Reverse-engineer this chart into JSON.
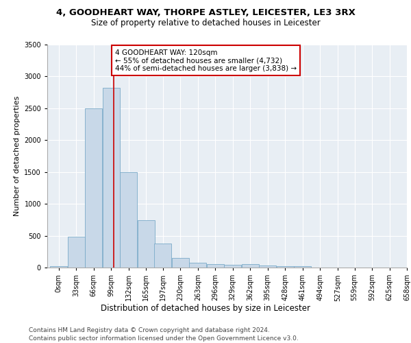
{
  "title1": "4, GOODHEART WAY, THORPE ASTLEY, LEICESTER, LE3 3RX",
  "title2": "Size of property relative to detached houses in Leicester",
  "xlabel": "Distribution of detached houses by size in Leicester",
  "ylabel": "Number of detached properties",
  "bin_labels": [
    "0sqm",
    "33sqm",
    "66sqm",
    "99sqm",
    "132sqm",
    "165sqm",
    "197sqm",
    "230sqm",
    "263sqm",
    "296sqm",
    "329sqm",
    "362sqm",
    "395sqm",
    "428sqm",
    "461sqm",
    "494sqm",
    "527sqm",
    "559sqm",
    "592sqm",
    "625sqm",
    "658sqm"
  ],
  "bin_edges": [
    0,
    33,
    66,
    99,
    132,
    165,
    197,
    230,
    263,
    296,
    329,
    362,
    395,
    428,
    461,
    494,
    527,
    559,
    592,
    625,
    658
  ],
  "bar_heights": [
    20,
    480,
    2500,
    2820,
    1500,
    740,
    380,
    155,
    75,
    50,
    40,
    50,
    30,
    25,
    20,
    5,
    3,
    2,
    2,
    1,
    0
  ],
  "bar_color": "#c8d8e8",
  "bar_edge_color": "#7aaac8",
  "vline_x": 120,
  "vline_color": "#cc0000",
  "annotation_text": "4 GOODHEART WAY: 120sqm\n← 55% of detached houses are smaller (4,732)\n44% of semi-detached houses are larger (3,838) →",
  "annotation_box_color": "white",
  "annotation_box_edge": "#cc0000",
  "ylim": [
    0,
    3500
  ],
  "yticks": [
    0,
    500,
    1000,
    1500,
    2000,
    2500,
    3000,
    3500
  ],
  "bg_color": "#e8eef4",
  "footer1": "Contains HM Land Registry data © Crown copyright and database right 2024.",
  "footer2": "Contains public sector information licensed under the Open Government Licence v3.0.",
  "title1_fontsize": 9.5,
  "title2_fontsize": 8.5,
  "xlabel_fontsize": 8.5,
  "ylabel_fontsize": 8,
  "tick_fontsize": 7,
  "annot_fontsize": 7.5,
  "footer_fontsize": 6.5
}
